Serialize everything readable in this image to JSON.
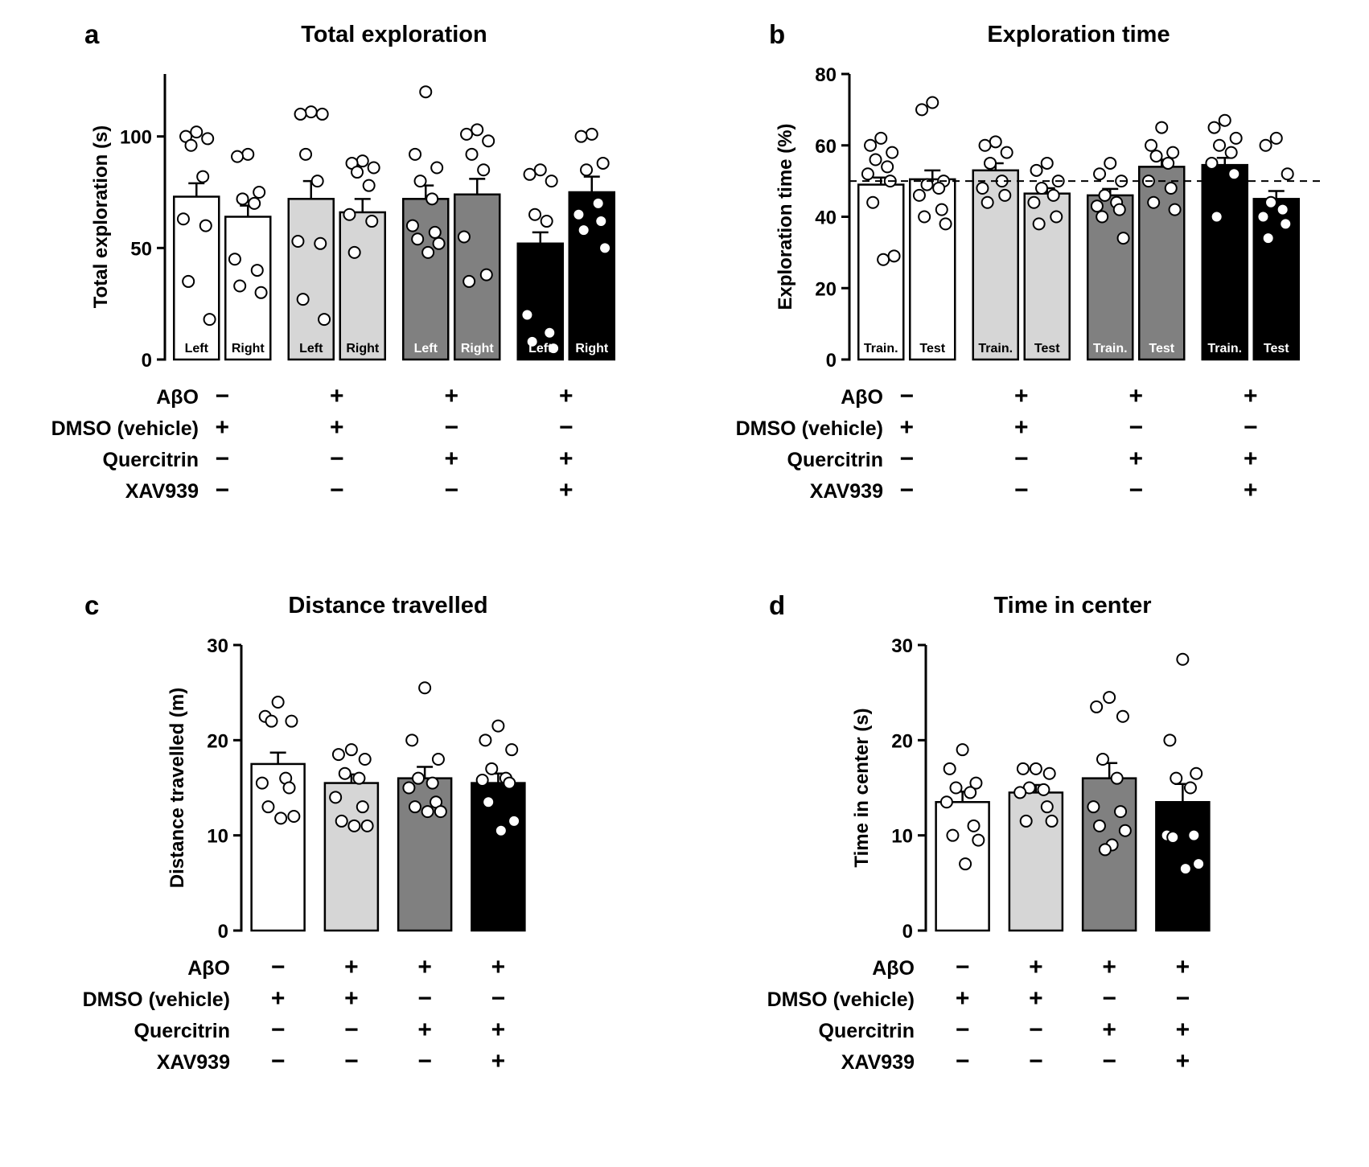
{
  "figure_title": "",
  "chart_data": [
    {
      "type": "bar",
      "letter": "a",
      "title": "Total exploration",
      "paired": true,
      "ylabel": "Total exploration (s)",
      "ylim": [
        0,
        128
      ],
      "yticks": [
        0,
        50,
        100
      ],
      "refline": null,
      "grid": false,
      "legend": "none",
      "groups": [
        {
          "fill": "#ffffff",
          "label_color": "#000000",
          "bars": [
            {
              "label": "Left",
              "mean": 73,
              "sem": 6,
              "points": [
                102,
                100,
                99,
                96,
                82,
                63,
                60,
                35,
                18
              ]
            },
            {
              "label": "Right",
              "mean": 64,
              "sem": 5,
              "points": [
                92,
                91,
                75,
                72,
                70,
                45,
                40,
                33,
                30
              ]
            }
          ]
        },
        {
          "fill": "#d6d6d6",
          "label_color": "#000000",
          "bars": [
            {
              "label": "Left",
              "mean": 72,
              "sem": 8,
              "points": [
                111,
                110,
                110,
                92,
                80,
                53,
                52,
                27,
                18
              ]
            },
            {
              "label": "Right",
              "mean": 66,
              "sem": 6,
              "points": [
                89,
                88,
                86,
                84,
                78,
                65,
                62,
                48
              ]
            }
          ]
        },
        {
          "fill": "#808080",
          "label_color": "#ffffff",
          "bars": [
            {
              "label": "Left",
              "mean": 72,
              "sem": 6,
              "points": [
                120,
                92,
                86,
                80,
                72,
                60,
                57,
                54,
                52,
                48
              ]
            },
            {
              "label": "Right",
              "mean": 74,
              "sem": 7,
              "points": [
                103,
                101,
                98,
                92,
                85,
                55,
                38,
                35
              ]
            }
          ]
        },
        {
          "fill": "#000000",
          "label_color": "#ffffff",
          "bars": [
            {
              "label": "Left",
              "mean": 52,
              "sem": 5,
              "points": [
                85,
                83,
                80,
                65,
                62,
                20,
                12,
                8,
                5
              ]
            },
            {
              "label": "Right",
              "mean": 75,
              "sem": 7,
              "points": [
                101,
                100,
                88,
                85,
                70,
                65,
                62,
                58,
                50
              ]
            }
          ]
        }
      ],
      "treatments": {
        "rows": [
          {
            "label": "AβO",
            "values": [
              "−",
              "+",
              "+",
              "+"
            ]
          },
          {
            "label": "DMSO (vehicle)",
            "values": [
              "+",
              "+",
              "−",
              "−"
            ]
          },
          {
            "label": "Quercitrin",
            "values": [
              "−",
              "−",
              "+",
              "+"
            ]
          },
          {
            "label": "XAV939",
            "values": [
              "−",
              "−",
              "−",
              "+"
            ]
          }
        ]
      }
    },
    {
      "type": "bar",
      "letter": "b",
      "title": "Exploration time",
      "paired": true,
      "ylabel": "Exploration time (%)",
      "ylim": [
        0,
        80
      ],
      "yticks": [
        0,
        20,
        40,
        60,
        80
      ],
      "refline": 50,
      "grid": false,
      "legend": "none",
      "groups": [
        {
          "fill": "#ffffff",
          "label_color": "#000000",
          "bars": [
            {
              "label": "Train.",
              "mean": 49,
              "sem": 2,
              "points": [
                62,
                60,
                58,
                56,
                54,
                52,
                50,
                44,
                29,
                28
              ]
            },
            {
              "label": "Test",
              "mean": 50.5,
              "sem": 2.5,
              "points": [
                72,
                70,
                50,
                49,
                48,
                46,
                42,
                40,
                38
              ]
            }
          ]
        },
        {
          "fill": "#d6d6d6",
          "label_color": "#000000",
          "bars": [
            {
              "label": "Train.",
              "mean": 53,
              "sem": 2,
              "points": [
                61,
                60,
                58,
                55,
                50,
                48,
                46,
                44
              ]
            },
            {
              "label": "Test",
              "mean": 46.5,
              "sem": 1.5,
              "points": [
                55,
                53,
                50,
                48,
                46,
                44,
                40,
                38
              ]
            }
          ]
        },
        {
          "fill": "#808080",
          "label_color": "#ffffff",
          "bars": [
            {
              "label": "Train.",
              "mean": 46,
              "sem": 1.8,
              "points": [
                55,
                52,
                50,
                46,
                44,
                43,
                42,
                40,
                34
              ]
            },
            {
              "label": "Test",
              "mean": 54,
              "sem": 2,
              "points": [
                65,
                60,
                58,
                57,
                55,
                50,
                48,
                44,
                42
              ]
            }
          ]
        },
        {
          "fill": "#000000",
          "label_color": "#ffffff",
          "bars": [
            {
              "label": "Train.",
              "mean": 54.5,
              "sem": 2,
              "points": [
                67,
                65,
                62,
                60,
                58,
                55,
                52,
                40
              ]
            },
            {
              "label": "Test",
              "mean": 45,
              "sem": 2.2,
              "points": [
                62,
                60,
                52,
                44,
                42,
                40,
                38,
                34
              ]
            }
          ]
        }
      ],
      "treatments": {
        "rows": [
          {
            "label": "AβO",
            "values": [
              "−",
              "+",
              "+",
              "+"
            ]
          },
          {
            "label": "DMSO (vehicle)",
            "values": [
              "+",
              "+",
              "−",
              "−"
            ]
          },
          {
            "label": "Quercitrin",
            "values": [
              "−",
              "−",
              "+",
              "+"
            ]
          },
          {
            "label": "XAV939",
            "values": [
              "−",
              "−",
              "−",
              "+"
            ]
          }
        ]
      }
    },
    {
      "type": "bar",
      "letter": "c",
      "title": "Distance travelled",
      "paired": false,
      "ylabel": "Distance travelled (m)",
      "ylim": [
        0,
        30
      ],
      "yticks": [
        0,
        10,
        20,
        30
      ],
      "refline": null,
      "grid": false,
      "legend": "none",
      "groups": [
        {
          "fill": "#ffffff",
          "label_color": "#000000",
          "bars": [
            {
              "label": "",
              "mean": 17.5,
              "sem": 1.2,
              "points": [
                24,
                22.5,
                22,
                22,
                16,
                15.5,
                15,
                13,
                12,
                11.8
              ]
            }
          ]
        },
        {
          "fill": "#d6d6d6",
          "label_color": "#000000",
          "bars": [
            {
              "label": "",
              "mean": 15.5,
              "sem": 0.9,
              "points": [
                19,
                18.5,
                18,
                16.5,
                16,
                14,
                13,
                11.5,
                11,
                11
              ]
            }
          ]
        },
        {
          "fill": "#808080",
          "label_color": "#ffffff",
          "bars": [
            {
              "label": "",
              "mean": 16,
              "sem": 1.2,
              "points": [
                25.5,
                20,
                18,
                16,
                15.5,
                15,
                13.5,
                13,
                12.5,
                12.5
              ]
            }
          ]
        },
        {
          "fill": "#000000",
          "label_color": "#ffffff",
          "bars": [
            {
              "label": "",
              "mean": 15.5,
              "sem": 1,
              "points": [
                21.5,
                20,
                19,
                17,
                16,
                15.8,
                15.5,
                13.5,
                11.5,
                10.5
              ]
            }
          ]
        }
      ],
      "treatments": {
        "rows": [
          {
            "label": "AβO",
            "values": [
              "−",
              "+",
              "+",
              "+"
            ]
          },
          {
            "label": "DMSO (vehicle)",
            "values": [
              "+",
              "+",
              "−",
              "−"
            ]
          },
          {
            "label": "Quercitrin",
            "values": [
              "−",
              "−",
              "+",
              "+"
            ]
          },
          {
            "label": "XAV939",
            "values": [
              "−",
              "−",
              "−",
              "+"
            ]
          }
        ]
      }
    },
    {
      "type": "bar",
      "letter": "d",
      "title": "Time in center",
      "paired": false,
      "ylabel": "Time in center (s)",
      "ylim": [
        0,
        30
      ],
      "yticks": [
        0,
        10,
        20,
        30
      ],
      "refline": null,
      "grid": false,
      "legend": "none",
      "groups": [
        {
          "fill": "#ffffff",
          "label_color": "#000000",
          "bars": [
            {
              "label": "",
              "mean": 13.5,
              "sem": 1.1,
              "points": [
                19,
                17,
                15.5,
                15,
                14.5,
                13.5,
                11,
                10,
                9.5,
                7
              ]
            }
          ]
        },
        {
          "fill": "#d6d6d6",
          "label_color": "#000000",
          "bars": [
            {
              "label": "",
              "mean": 14.5,
              "sem": 0.8,
              "points": [
                17,
                17,
                16.5,
                15,
                14.8,
                14.5,
                13,
                11.5,
                11.5
              ]
            }
          ]
        },
        {
          "fill": "#808080",
          "label_color": "#ffffff",
          "bars": [
            {
              "label": "",
              "mean": 16,
              "sem": 1.6,
              "points": [
                24.5,
                23.5,
                22.5,
                18,
                16,
                13,
                12.5,
                11,
                10.5,
                9,
                8.5
              ]
            }
          ]
        },
        {
          "fill": "#000000",
          "label_color": "#ffffff",
          "bars": [
            {
              "label": "",
              "mean": 13.5,
              "sem": 1.9,
              "points": [
                28.5,
                20,
                16.5,
                16,
                15,
                10,
                10,
                9.8,
                7,
                6.5
              ]
            }
          ]
        }
      ],
      "treatments": {
        "rows": [
          {
            "label": "AβO",
            "values": [
              "−",
              "+",
              "+",
              "+"
            ]
          },
          {
            "label": "DMSO (vehicle)",
            "values": [
              "+",
              "+",
              "−",
              "−"
            ]
          },
          {
            "label": "Quercitrin",
            "values": [
              "−",
              "−",
              "+",
              "+"
            ]
          },
          {
            "label": "XAV939",
            "values": [
              "−",
              "−",
              "−",
              "+"
            ]
          }
        ]
      }
    }
  ]
}
